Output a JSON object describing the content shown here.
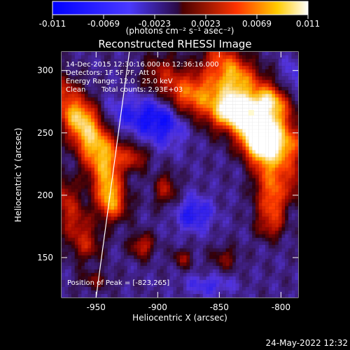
{
  "chart_data": {
    "type": "heatmap",
    "title": "Reconstructed RHESSI Image",
    "colorbar": {
      "ticks": [
        "-0.011",
        "-0.0069",
        "-0.0023",
        "0.0023",
        "0.0069",
        "0.011"
      ],
      "units": "(photons cm⁻² s⁻¹ asec⁻²)"
    },
    "x_axis": {
      "label": "Heliocentric X (arcsec)",
      "ticks": [
        "-950",
        "-900",
        "-850",
        "-800"
      ],
      "range": [
        -978,
        -786
      ]
    },
    "y_axis": {
      "label": "Heliocentric Y (arcsec)",
      "ticks": [
        "150",
        "200",
        "250",
        "300"
      ],
      "range": [
        118,
        315
      ]
    },
    "annotations": {
      "time_range": "14-Dec-2015 12:30:16.000 to 12:36:16.000",
      "detectors": "Detectors: 1F 5F 7F, Att 0",
      "energy_range": "Energy Range: 12.0 - 25.0 keV",
      "clean": "Clean",
      "total_counts": "Total counts: 2.93E+03",
      "peak_position": "Position of Peak = [-823,265]"
    },
    "peak": {
      "x": -823,
      "y": 265
    },
    "footer_timestamp": "24-May-2022 12:32",
    "limb_line": [
      {
        "x": -950,
        "y": 118
      },
      {
        "x": -923,
        "y": 315
      }
    ]
  }
}
